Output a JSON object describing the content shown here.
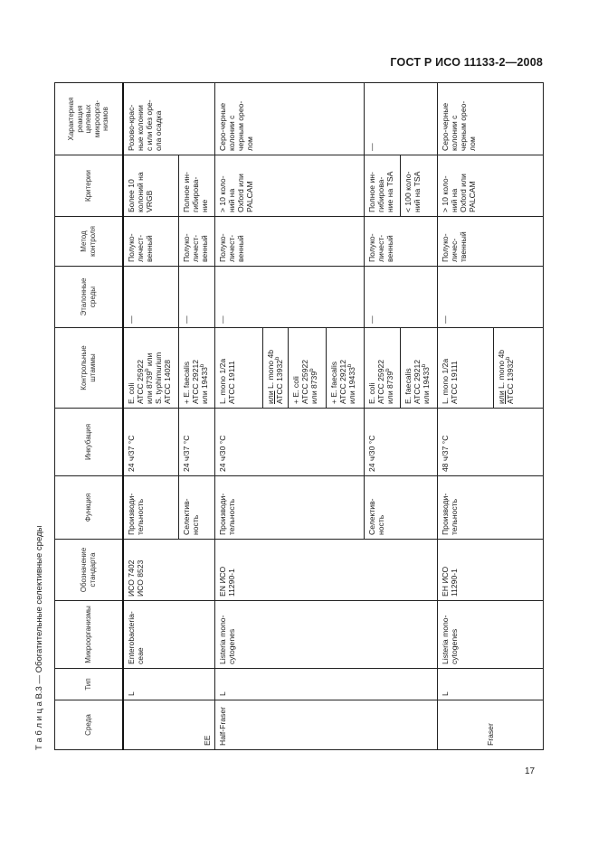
{
  "title": "ГОСТ Р ИСО 11133-2—2008",
  "caption": "Т а б л и ц а  В.3 — Обогатительные селективные среды",
  "page_number": "17",
  "columns": [
    "Среда",
    "Тип",
    "Микроорганизмы",
    "Обозначение\nстандарта",
    "Функция",
    "Инкубация",
    "Контрольные\nштаммы",
    "Эталонные\nсреды",
    "Метод\nконтроля",
    "Критерии",
    "Характерная\nреакция\nцелевых\nмикроорга-\nнизмов"
  ],
  "ee": {
    "medium": "EE",
    "type": "L",
    "organism": "Entero­bacteria-\nceae",
    "standard": "ИСО 7402\nИСО 8523",
    "reaction": "Розово-крас-\nные колонии\nс или без оре-\nола осадка",
    "productivity": {
      "function": "Производи-\nтельность",
      "incubation": "24 ч/37 °C",
      "strain": "E. coli\nATCC 25922\nили 8739",
      "strain_sup": "b",
      "strain_tail": " или\nS. typhimurium\nATCC 14028",
      "reference": "—",
      "method": "Полуко-\nличест-\nвенный",
      "criteria": "Более 10\nколоний на\nVRGB"
    },
    "selectivity": {
      "function": "Селектив-\nность",
      "incubation": "24 ч/37 °C",
      "strain": "+ E. faecalis\nATCC 29212\nили 19433",
      "strain_sup": "b",
      "reference": "—",
      "method": "Полуко-\nличест-\nвенный",
      "criteria": "Полное ин-\nгибирова-\nние"
    }
  },
  "half_fraser": {
    "medium": "Half-Fraser",
    "type": "L",
    "organism": "Listeria mono-\ncytogenes",
    "standard": "EN ИСО\n11290-1",
    "productivity": {
      "function": "Производи-\nтельность",
      "incubation": "24 ч/30 °C",
      "strains": [
        {
          "text": "L. mono 1/2a\nATCC 19111"
        },
        {
          "prefix": "или",
          "text": " L. mono 4b\nATCC 13932",
          "sup": "b"
        },
        {
          "text": "+ E. coli\nATCC 25922\nили 8739",
          "sup": "b"
        },
        {
          "text": "+ E. faecalis\nATCC 29212\nили 19433",
          "sup": "b"
        }
      ],
      "reference": "—",
      "method": "Полуко-\nличест-\nвенный",
      "criteria": "> 10 коло-\nний на\nOxford или\nPALCAM",
      "reaction": "Серо-черные\nколонии с\nчерным орео-\nлом"
    },
    "selectivity": {
      "function": "Селектив-\nность",
      "incubation": "24 ч/30 °C",
      "strains": [
        {
          "text": "E. coli\nATCC 25922\nили 8739",
          "sup": "b"
        },
        {
          "text": "E. faecalis\nATCC 29212\nили 19433",
          "sup": "b"
        }
      ],
      "reference": "—",
      "method": "Полуко-\nличест-\nвенный",
      "criteria": [
        "Полное ин-\nгибирова-\nние на TSA",
        "< 100 коло-\nний на TSA"
      ],
      "reaction": "—"
    }
  },
  "fraser": {
    "medium": "Fraser",
    "type": "L",
    "organism": "Listeria mono-\ncytogenes",
    "standard": "ЕН ИСО\n11290-1",
    "productivity": {
      "function": "Производи-\nтельность",
      "incubation": "48 ч/37 °C",
      "strains": [
        {
          "text": "L. mono 1/2a\nATCC 19111"
        },
        {
          "prefix": "или",
          "text": " L. mono 4b\nATCC 13932",
          "sup": "b"
        }
      ],
      "reference": "—",
      "method": "Полуко-\nличес-\nтвенный",
      "criteria": "> 10 коло-\nний на\nOxford или\nPALCAM",
      "reaction": "Серо-черные\nколонии с\nчерным орео-\nлом"
    }
  }
}
